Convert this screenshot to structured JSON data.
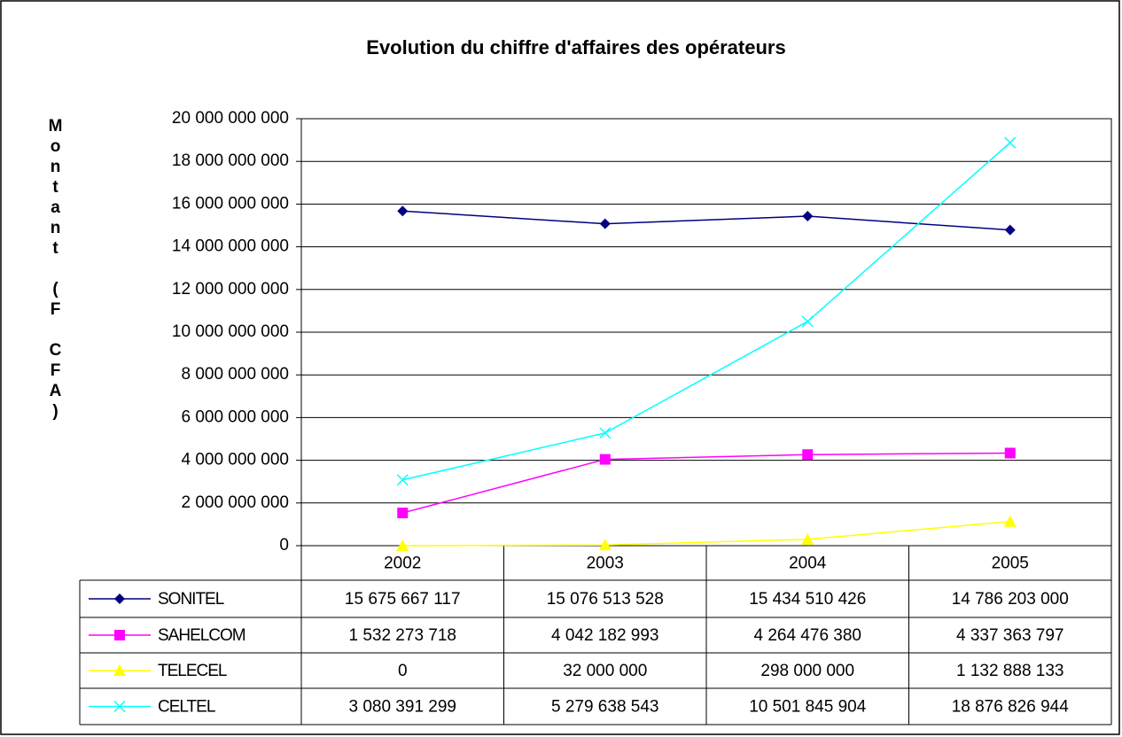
{
  "chart_data": {
    "type": "line",
    "title": "Evolution du chiffre d'affaires des opérateurs",
    "y_label": "Montant (F CFA)",
    "categories": [
      "2002",
      "2003",
      "2004",
      "2005"
    ],
    "series": [
      {
        "name": "SONITEL",
        "color": "#000080",
        "marker": "diamond",
        "values": [
          15675667117,
          15076513528,
          15434510426,
          14786203000
        ],
        "value_labels": [
          "15 675 667 117",
          "15 076 513 528",
          "15 434 510 426",
          "14 786 203 000"
        ]
      },
      {
        "name": "SAHELCOM",
        "color": "#ff00ff",
        "marker": "square",
        "values": [
          1532273718,
          4042182993,
          4264476380,
          4337363797
        ],
        "value_labels": [
          "1 532 273 718",
          "4 042 182 993",
          "4 264 476 380",
          "4 337 363 797"
        ]
      },
      {
        "name": "TELECEL",
        "color": "#ffff00",
        "marker": "triangle",
        "values": [
          0,
          32000000,
          298000000,
          1132888133
        ],
        "value_labels": [
          "0",
          "32 000 000",
          "298 000 000",
          "1 132 888 133"
        ]
      },
      {
        "name": "CELTEL",
        "color": "#00ffff",
        "marker": "x",
        "values": [
          3080391299,
          5279638543,
          10501845904,
          18876826944
        ],
        "value_labels": [
          "3 080 391 299",
          "5 279 638 543",
          "10 501 845 904",
          "18 876 826 944"
        ]
      }
    ],
    "ylim": [
      0,
      20000000000
    ],
    "yticks": [
      0,
      {
        "value": 2000000000,
        "label": "2 000 000 000"
      },
      {
        "value": 4000000000,
        "label": "4 000 000 000"
      },
      {
        "value": 6000000000,
        "label": "6 000 000 000"
      },
      {
        "value": 8000000000,
        "label": "8 000 000 000"
      },
      {
        "value": 10000000000,
        "label": "10 000 000 000"
      },
      {
        "value": 12000000000,
        "label": "12 000 000 000"
      },
      {
        "value": 14000000000,
        "label": "14 000 000 000"
      },
      {
        "value": 16000000000,
        "label": "16 000 000 000"
      },
      {
        "value": 18000000000,
        "label": "18 000 000 000"
      },
      {
        "value": 20000000000,
        "label": "20 000 000 000"
      }
    ],
    "grid": true
  }
}
